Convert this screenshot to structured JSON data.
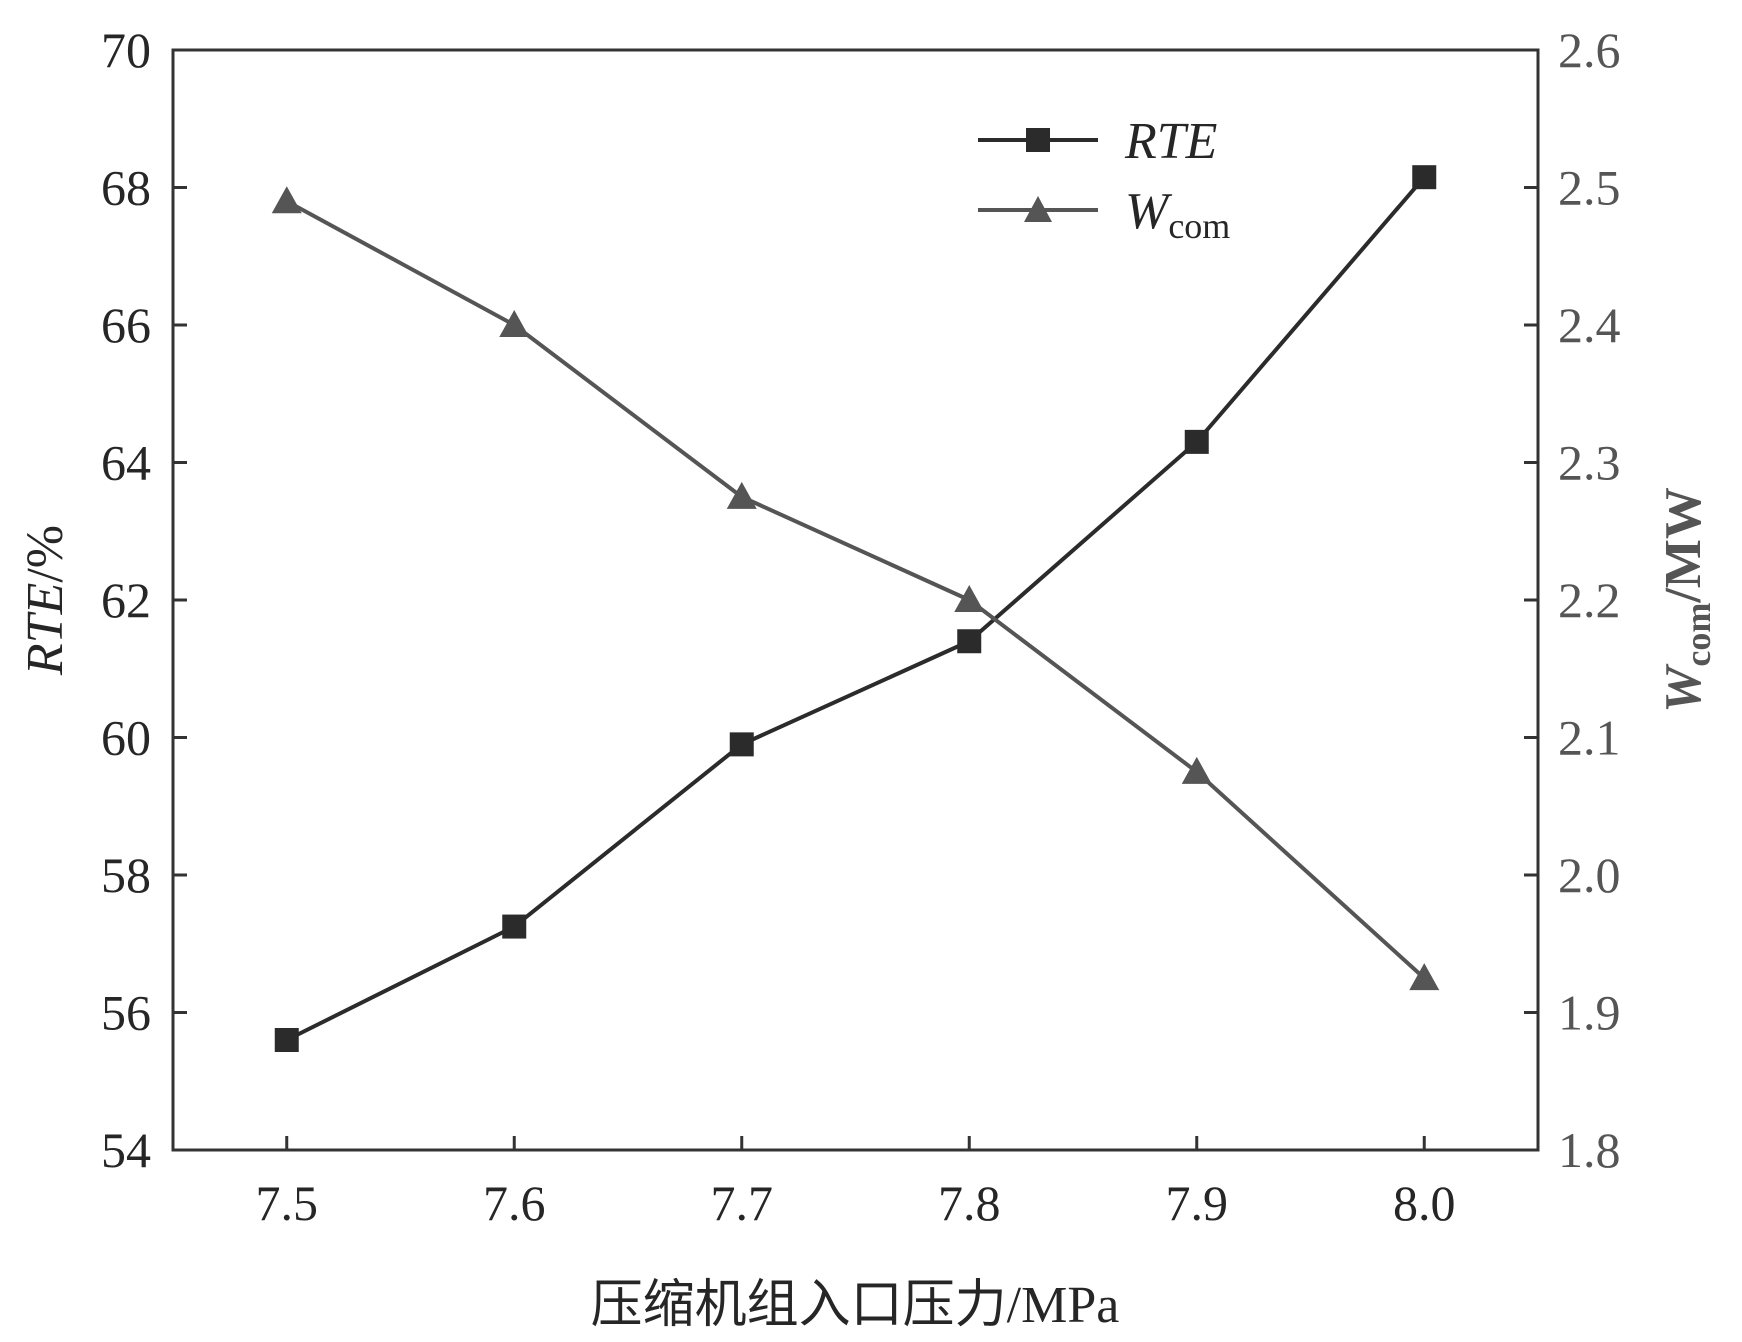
{
  "chart_data": {
    "type": "line",
    "x": [
      7.5,
      7.6,
      7.7,
      7.8,
      7.9,
      8.0
    ],
    "xlabel": "压缩机组入口压力/MPa",
    "xticks": [
      "7.5",
      "7.6",
      "7.7",
      "7.8",
      "7.9",
      "8.0"
    ],
    "xlim": [
      7.45,
      8.05
    ],
    "left_axis": {
      "label_main": "RTE",
      "label_unit": "/%",
      "ylim": [
        54,
        70
      ],
      "ticks": [
        "54",
        "56",
        "58",
        "60",
        "62",
        "64",
        "66",
        "68",
        "70"
      ]
    },
    "right_axis": {
      "label_main": "W",
      "label_sub": "com",
      "label_unit": "/MW",
      "ylim": [
        1.8,
        2.6
      ],
      "ticks": [
        "1.8",
        "1.9",
        "2.0",
        "2.1",
        "2.2",
        "2.3",
        "2.4",
        "2.5",
        "2.6"
      ]
    },
    "series": [
      {
        "name": "RTE",
        "axis": "left",
        "marker": "square",
        "color": "#2b2b2b",
        "values": [
          55.6,
          57.25,
          59.9,
          61.4,
          64.3,
          68.15
        ]
      },
      {
        "name": "W",
        "name_sub": "com",
        "axis": "right",
        "marker": "triangle",
        "color": "#555555",
        "values": [
          2.49,
          2.4,
          2.275,
          2.2,
          2.075,
          1.925
        ]
      }
    ],
    "legend_position": "top-right",
    "grid": false
  }
}
